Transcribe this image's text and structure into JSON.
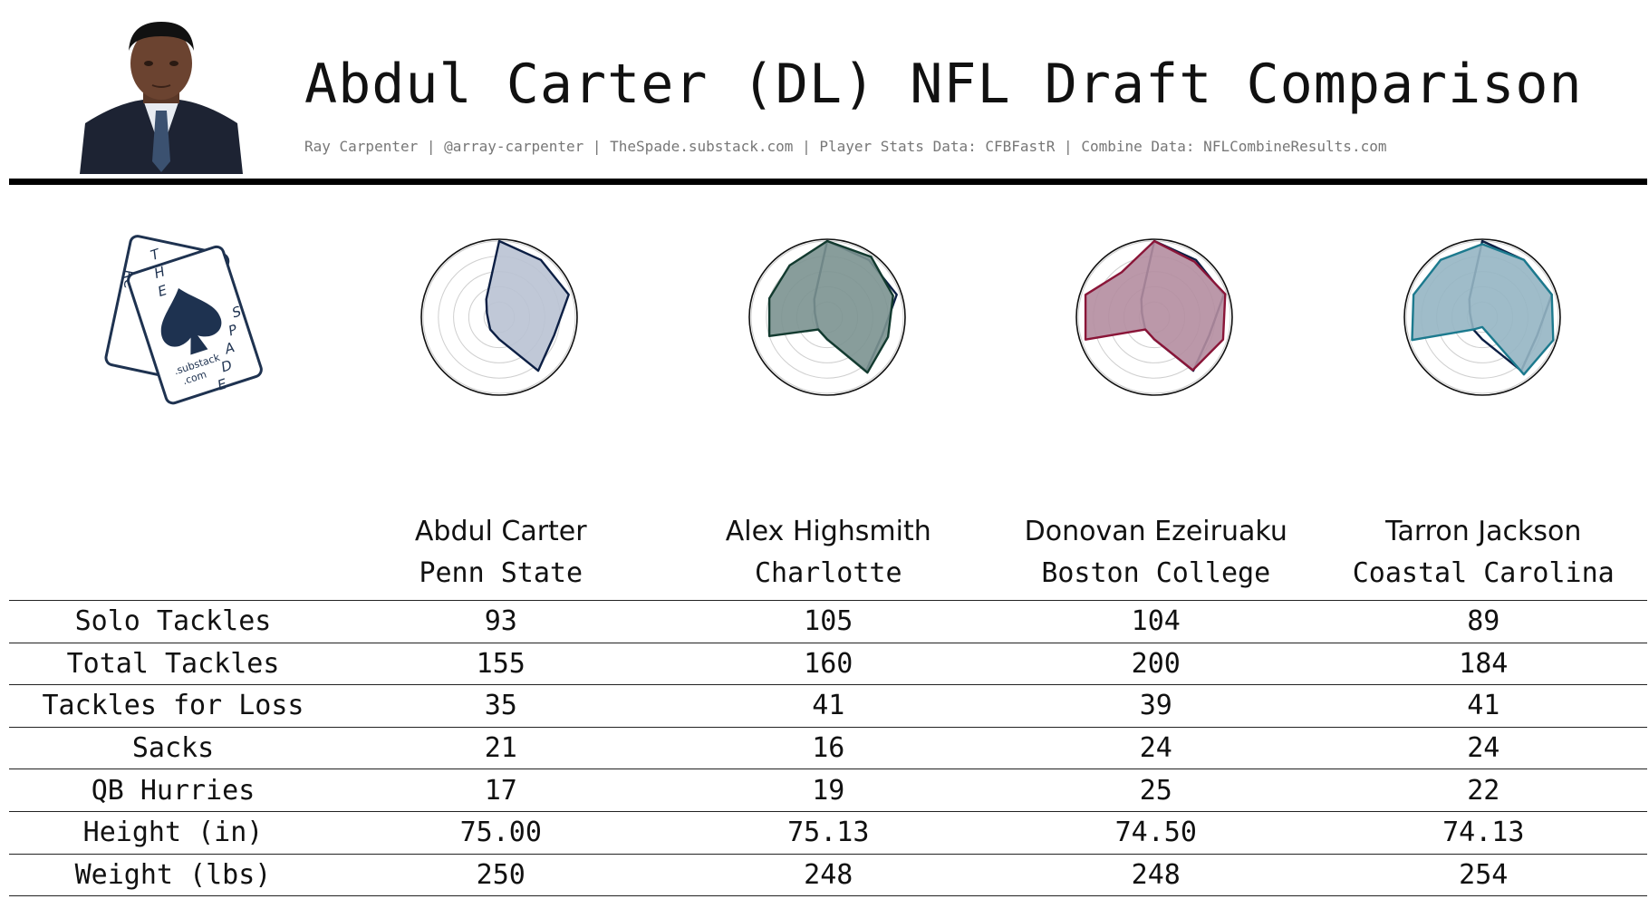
{
  "header": {
    "title": "Abdul Carter (DL) NFL Draft Comparison",
    "subtitle": "Ray Carpenter | @array-carpenter | TheSpade.substack.com | Player Stats Data: CFBFastR | Combine Data: NFLCombineResults.com"
  },
  "logo": {
    "letters_back": "RC",
    "letters_front": "THESPADE",
    "line1": ".substack",
    "line2": ".com"
  },
  "chart_data": {
    "type": "table",
    "columns": [
      "Abdul Carter",
      "Alex Highsmith",
      "Donovan Ezeiruaku",
      "Tarron Jackson"
    ],
    "schools": [
      "Penn State",
      "Charlotte",
      "Boston College",
      "Coastal Carolina"
    ],
    "rows": [
      {
        "label": "Solo Tackles",
        "values": [
          "93",
          "105",
          "104",
          "89"
        ]
      },
      {
        "label": "Total Tackles",
        "values": [
          "155",
          "160",
          "200",
          "184"
        ]
      },
      {
        "label": "Tackles for Loss",
        "values": [
          "35",
          "41",
          "39",
          "41"
        ]
      },
      {
        "label": "Sacks",
        "values": [
          "21",
          "16",
          "24",
          "24"
        ]
      },
      {
        "label": "QB Hurries",
        "values": [
          "17",
          "19",
          "25",
          "22"
        ]
      },
      {
        "label": "Height (in)",
        "values": [
          "75.00",
          "75.13",
          "74.50",
          "74.13"
        ]
      },
      {
        "label": "Weight (lbs)",
        "values": [
          "250",
          "248",
          "248",
          "254"
        ]
      }
    ],
    "radar": {
      "type": "radar",
      "rmax": 1.0,
      "grid_levels": 5,
      "charts": [
        {
          "color": "#0c1f44",
          "fill": "#b9c2d3",
          "series": [
            {
              "values": [
                1.0,
                0.93,
                0.96,
                0.76,
                0.87,
                0.29,
                0.2,
                0.15,
                0.17,
                0.29
              ]
            }
          ]
        },
        {
          "color": "#123a2f",
          "fill": "#7b9290",
          "series": [
            {
              "values": [
                1.0,
                0.98,
                0.91,
                0.84,
                0.9,
                0.29,
                0.2,
                0.8,
                0.8,
                0.84
              ]
            },
            {
              "values": [
                1.0,
                0.93,
                0.96,
                0.76,
                0.87,
                0.29,
                0.2,
                0.15,
                0.17,
                0.29
              ],
              "color": "#0c1f44"
            }
          ]
        },
        {
          "color": "#8a1538",
          "fill": "#b48da0",
          "series": [
            {
              "values": [
                1.0,
                0.9,
                0.98,
                0.95,
                0.86,
                0.29,
                0.2,
                0.95,
                0.95,
                0.73
              ]
            },
            {
              "values": [
                1.0,
                0.93,
                0.96,
                0.76,
                0.87,
                0.29,
                0.2,
                0.15,
                0.17,
                0.29
              ],
              "color": "#0c1f44"
            }
          ]
        },
        {
          "color": "#1c7a8e",
          "fill": "#95b5c3",
          "series": [
            {
              "values": [
                0.96,
                0.93,
                0.96,
                0.98,
                0.93,
                0.13,
                0.2,
                0.97,
                0.95,
                0.93
              ]
            },
            {
              "values": [
                1.0,
                0.93,
                0.96,
                0.76,
                0.87,
                0.29,
                0.2,
                0.15,
                0.17,
                0.29
              ],
              "color": "#0c1f44"
            }
          ]
        }
      ]
    }
  }
}
